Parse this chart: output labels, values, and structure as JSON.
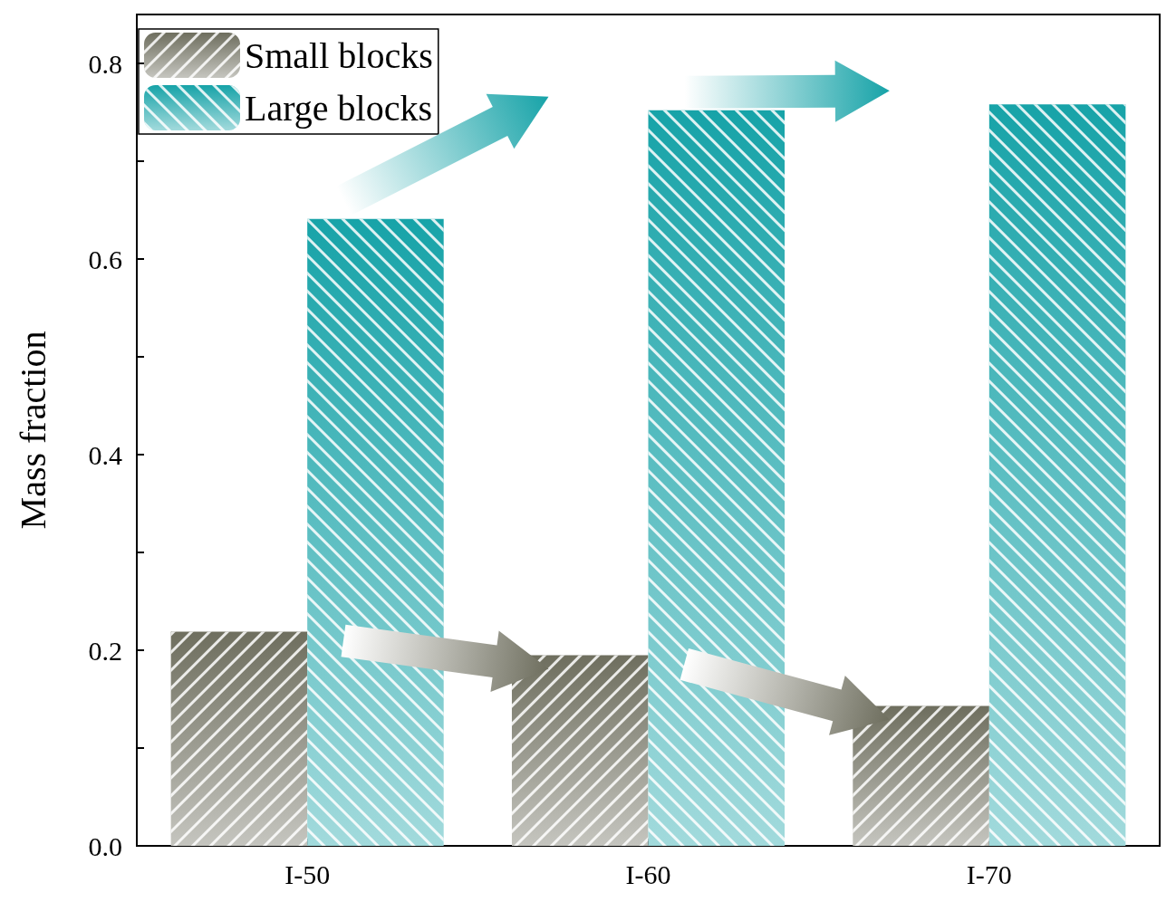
{
  "chart_data": {
    "type": "bar",
    "ylabel": "Mass fraction",
    "categories": [
      "I-50",
      "I-60",
      "I-70"
    ],
    "series": [
      {
        "name": "Small blocks",
        "color": "#6e6e5e",
        "values": [
          0.219,
          0.195,
          0.143
        ]
      },
      {
        "name": "Large blocks",
        "color": "#17a3a8",
        "values": [
          0.641,
          0.752,
          0.758
        ]
      }
    ],
    "ylim": [
      0,
      0.85
    ],
    "yticks": [
      {
        "value": 0,
        "label": "0.0"
      },
      {
        "value": 0.1,
        "label": null
      },
      {
        "value": 0.2,
        "label": "0.2"
      },
      {
        "value": 0.3,
        "label": null
      },
      {
        "value": 0.4,
        "label": "0.4"
      },
      {
        "value": 0.5,
        "label": null
      },
      {
        "value": 0.6,
        "label": "0.6"
      },
      {
        "value": 0.7,
        "label": null
      },
      {
        "value": 0.8,
        "label": "0.8"
      }
    ],
    "grid": false,
    "legend": "top left"
  }
}
